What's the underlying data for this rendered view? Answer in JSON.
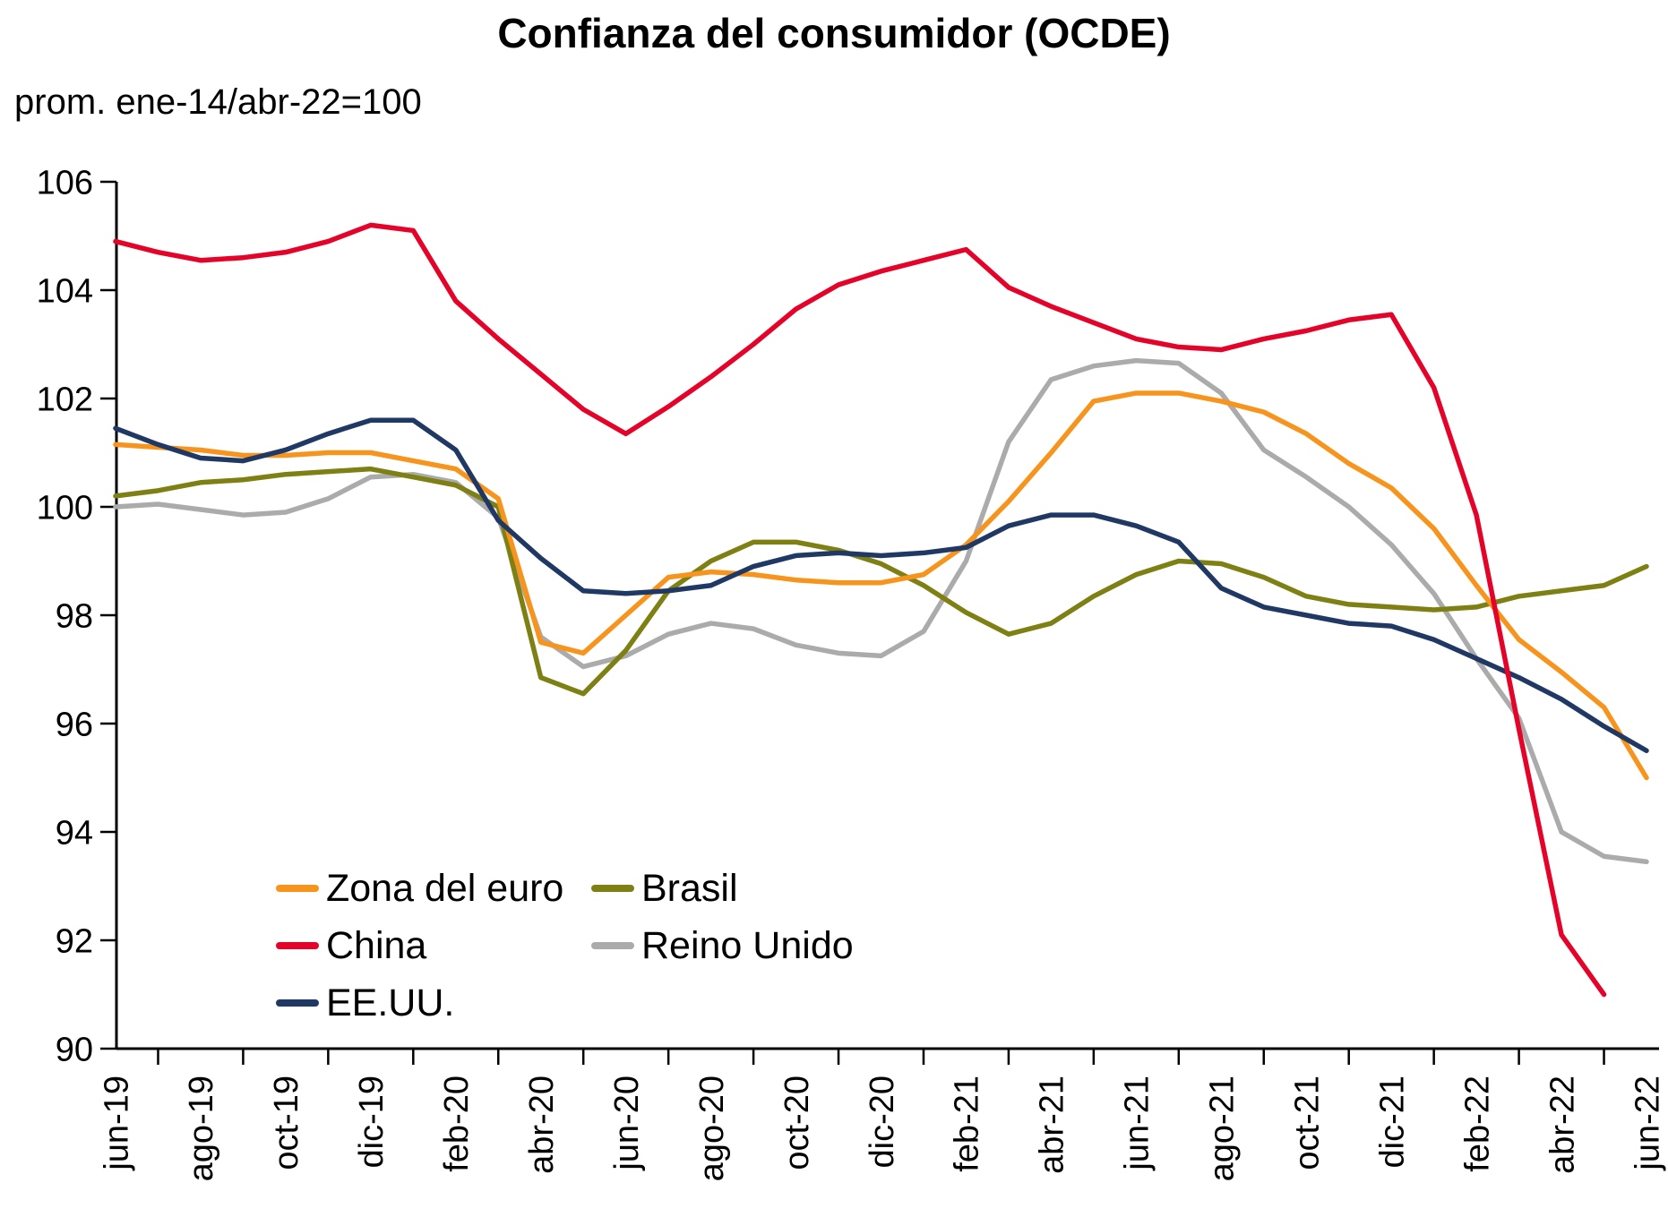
{
  "title": "Confianza del consumidor (OCDE)",
  "subtitle": "prom. ene-14/abr-22=100",
  "chart_data": {
    "type": "line",
    "title": "Confianza del consumidor (OCDE)",
    "subtitle": "prom. ene-14/abr-22=100",
    "xlabel": "",
    "ylabel": "",
    "ylim": [
      90,
      106
    ],
    "y_ticks": [
      90,
      92,
      94,
      96,
      98,
      100,
      102,
      104,
      106
    ],
    "grid": false,
    "legend_position": "inside-bottom-left",
    "categories": [
      "jun-19",
      "jul-19",
      "ago-19",
      "sep-19",
      "oct-19",
      "nov-19",
      "dic-19",
      "ene-20",
      "feb-20",
      "mar-20",
      "abr-20",
      "may-20",
      "jun-20",
      "jul-20",
      "ago-20",
      "sep-20",
      "oct-20",
      "nov-20",
      "dic-20",
      "ene-21",
      "feb-21",
      "mar-21",
      "abr-21",
      "may-21",
      "jun-21",
      "jul-21",
      "ago-21",
      "sep-21",
      "oct-21",
      "nov-21",
      "dic-21",
      "ene-22",
      "feb-22",
      "mar-22",
      "abr-22",
      "may-22",
      "jun-22"
    ],
    "x_tick_labels": [
      "jun-19",
      "ago-19",
      "oct-19",
      "dic-19",
      "feb-20",
      "abr-20",
      "jun-20",
      "ago-20",
      "oct-20",
      "dic-20",
      "feb-21",
      "abr-21",
      "jun-21",
      "ago-21",
      "oct-21",
      "dic-21",
      "feb-22",
      "abr-22",
      "jun-22"
    ],
    "series": [
      {
        "name": "Zona del euro",
        "color": "#F7941D",
        "values": [
          101.15,
          101.1,
          101.05,
          100.95,
          100.95,
          101.0,
          101.0,
          100.85,
          100.7,
          100.15,
          97.5,
          97.3,
          98.0,
          98.7,
          98.8,
          98.75,
          98.65,
          98.6,
          98.6,
          98.75,
          99.3,
          100.1,
          101.0,
          101.95,
          102.1,
          102.1,
          101.95,
          101.75,
          101.35,
          100.8,
          100.35,
          99.6,
          98.55,
          97.55,
          96.95,
          96.3,
          95.0
        ]
      },
      {
        "name": "China",
        "color": "#E40329",
        "values": [
          104.9,
          104.7,
          104.55,
          104.6,
          104.7,
          104.9,
          105.2,
          105.1,
          103.8,
          103.1,
          102.45,
          101.8,
          101.35,
          101.85,
          102.4,
          103.0,
          103.65,
          104.1,
          104.35,
          104.55,
          104.75,
          104.05,
          103.7,
          103.4,
          103.1,
          102.95,
          102.9,
          103.1,
          103.25,
          103.45,
          103.55,
          102.2,
          99.85,
          95.9,
          92.1,
          91.0
        ]
      },
      {
        "name": "EE.UU.",
        "color": "#1F3864",
        "values": [
          101.45,
          101.15,
          100.9,
          100.85,
          101.05,
          101.35,
          101.6,
          101.6,
          101.05,
          99.75,
          99.05,
          98.45,
          98.4,
          98.45,
          98.55,
          98.9,
          99.1,
          99.15,
          99.1,
          99.15,
          99.25,
          99.65,
          99.85,
          99.85,
          99.65,
          99.35,
          98.5,
          98.15,
          98.0,
          97.85,
          97.8,
          97.55,
          97.2,
          96.85,
          96.45,
          95.95,
          95.5
        ]
      },
      {
        "name": "Brasil",
        "color": "#7E8014",
        "values": [
          100.2,
          100.3,
          100.45,
          100.5,
          100.6,
          100.65,
          100.7,
          100.55,
          100.4,
          100.0,
          96.85,
          96.55,
          97.35,
          98.45,
          99.0,
          99.35,
          99.35,
          99.2,
          98.95,
          98.55,
          98.05,
          97.65,
          97.85,
          98.35,
          98.75,
          99.0,
          98.95,
          98.7,
          98.35,
          98.2,
          98.15,
          98.1,
          98.15,
          98.35,
          98.45,
          98.55,
          98.9
        ]
      },
      {
        "name": "Reino Unido",
        "color": "#ABABAB",
        "values": [
          100.0,
          100.05,
          99.95,
          99.85,
          99.9,
          100.15,
          100.55,
          100.6,
          100.45,
          99.8,
          97.6,
          97.05,
          97.25,
          97.65,
          97.85,
          97.75,
          97.45,
          97.3,
          97.25,
          97.7,
          99.0,
          101.2,
          102.35,
          102.6,
          102.7,
          102.65,
          102.1,
          101.05,
          100.55,
          100.0,
          99.3,
          98.4,
          97.2,
          96.1,
          94.0,
          93.55,
          93.45
        ]
      }
    ],
    "notes": {
      "last_china_point": "may-22"
    }
  }
}
